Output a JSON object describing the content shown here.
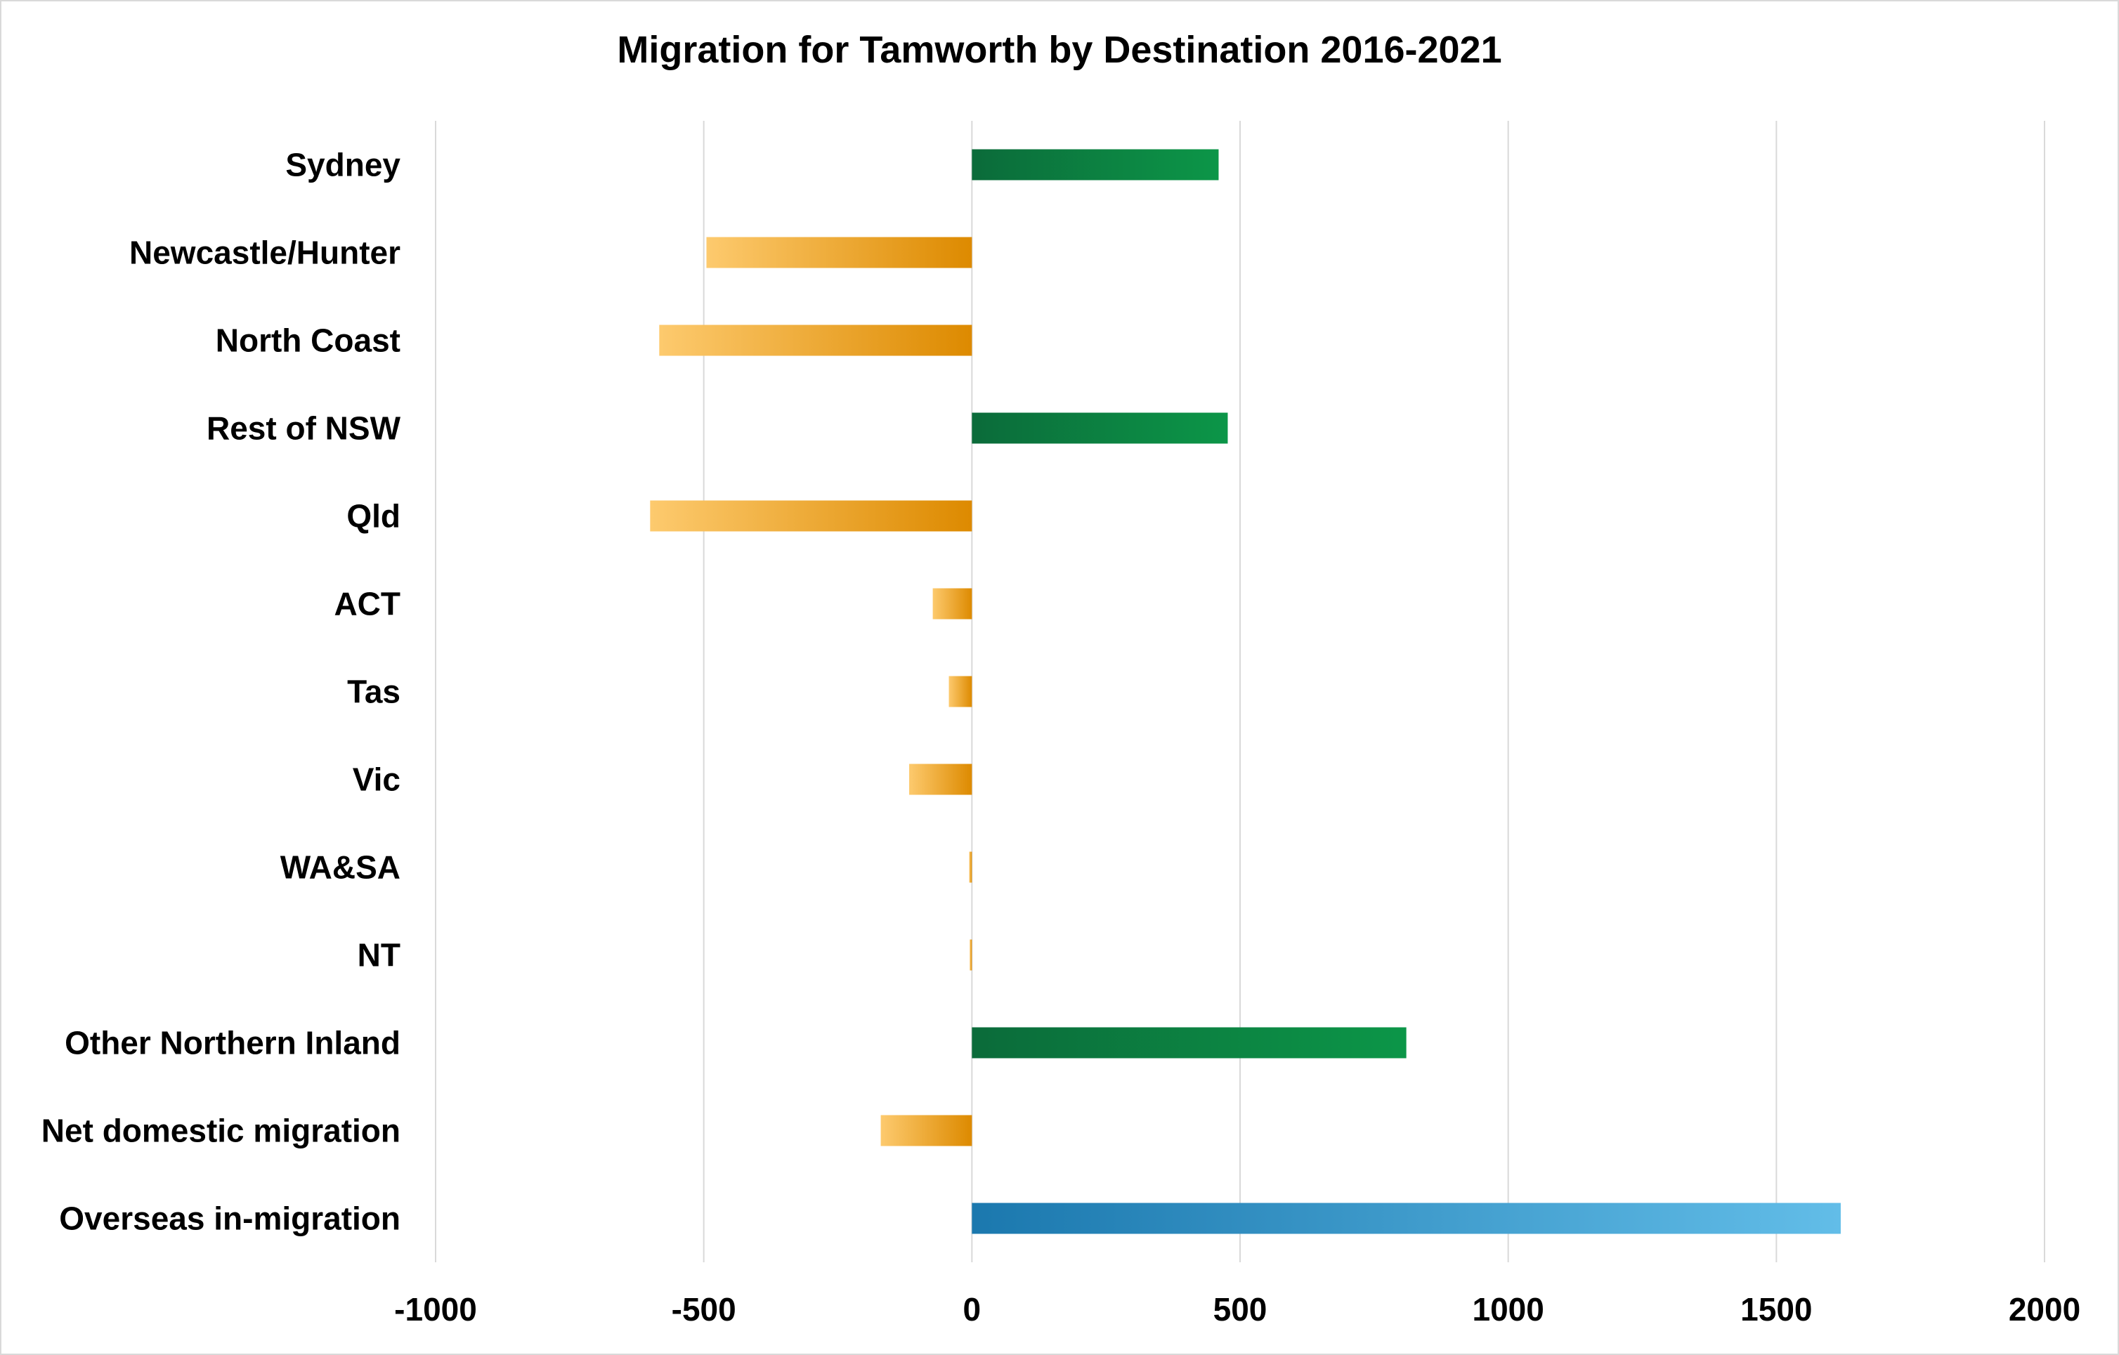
{
  "chart_data": {
    "type": "bar",
    "orientation": "horizontal",
    "title": "Migration for Tamworth by Destination 2016-2021",
    "xlabel": "",
    "ylabel": "",
    "categories": [
      "Sydney",
      "Newcastle/Hunter",
      "North Coast",
      "Rest of NSW",
      "Qld",
      "ACT",
      "Tas",
      "Vic",
      "WA&SA",
      "NT",
      "Other Northern Inland",
      "Net domestic migration",
      "Overseas in-migration"
    ],
    "values": [
      460,
      -495,
      -583,
      477,
      -600,
      -73,
      -43,
      -117,
      -5,
      -4,
      810,
      -170,
      1620
    ],
    "xlim": [
      -1000,
      2000
    ],
    "xticks": [
      -1000,
      -500,
      0,
      500,
      1000,
      1500,
      2000
    ],
    "grid": true,
    "legend": "none",
    "colors": {
      "positive_dark": "#0b6b3a",
      "positive_light": "#0c9648",
      "negative_light": "#fdca6e",
      "negative_dark": "#dd8a00",
      "overseas_dark": "#1b78ae",
      "overseas_light": "#62bde8",
      "gridline": "#d9d9d9"
    }
  }
}
